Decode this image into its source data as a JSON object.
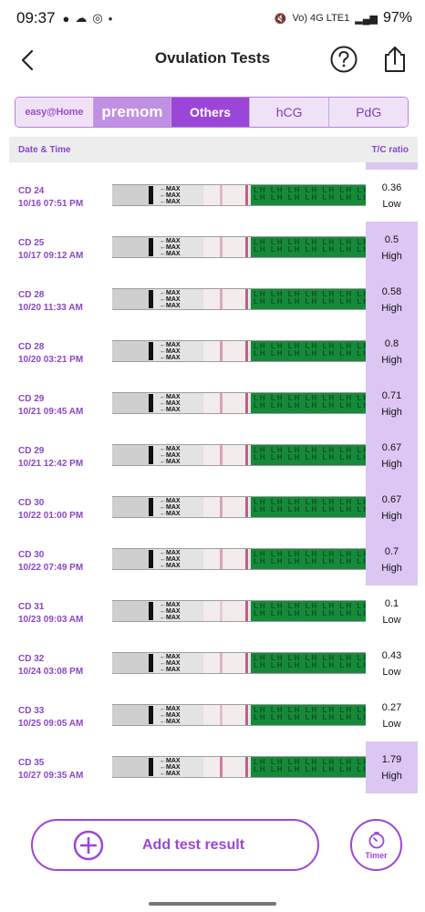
{
  "status_bar": {
    "time": "09:37",
    "network": "Vo) 4G LTE1",
    "battery": "97%"
  },
  "header": {
    "title": "Ovulation Tests"
  },
  "tabs": [
    {
      "label": "easy@Home"
    },
    {
      "label": "premom"
    },
    {
      "label": "Others"
    },
    {
      "label": "hCG"
    },
    {
      "label": "PdG"
    }
  ],
  "table": {
    "col_date": "Date & Time",
    "col_ratio": "T/C ratio"
  },
  "strip": {
    "max_label": "MAX",
    "lh_text": "LH LH LH LH LH LH LH LH LH LH LH LH LH LH LH LH"
  },
  "rows": [
    {
      "cd": "CD 24",
      "datetime": "10/16   07:51 PM",
      "ratio": "0.36",
      "level": "Low"
    },
    {
      "cd": "CD 25",
      "datetime": "10/17   09:12 AM",
      "ratio": "0.5",
      "level": "High"
    },
    {
      "cd": "CD 28",
      "datetime": "10/20   11:33 AM",
      "ratio": "0.58",
      "level": "High"
    },
    {
      "cd": "CD 28",
      "datetime": "10/20   03:21 PM",
      "ratio": "0.8",
      "level": "High"
    },
    {
      "cd": "CD 29",
      "datetime": "10/21   09:45 AM",
      "ratio": "0.71",
      "level": "High"
    },
    {
      "cd": "CD 29",
      "datetime": "10/21   12:42 PM",
      "ratio": "0.67",
      "level": "High"
    },
    {
      "cd": "CD 30",
      "datetime": "10/22   01:00 PM",
      "ratio": "0.67",
      "level": "High"
    },
    {
      "cd": "CD 30",
      "datetime": "10/22   07:49 PM",
      "ratio": "0.7",
      "level": "High"
    },
    {
      "cd": "CD 31",
      "datetime": "10/23   09:03 AM",
      "ratio": "0.1",
      "level": "Low"
    },
    {
      "cd": "CD 32",
      "datetime": "10/24   03:08 PM",
      "ratio": "0.43",
      "level": "Low"
    },
    {
      "cd": "CD 33",
      "datetime": "10/25   09:05 AM",
      "ratio": "0.27",
      "level": "Low"
    },
    {
      "cd": "CD 35",
      "datetime": "10/27   09:35 AM",
      "ratio": "1.79",
      "level": "High"
    }
  ],
  "bottom": {
    "add_label": "Add test result",
    "timer_label": "Timer"
  },
  "colors": {
    "accent": "#9c46d9",
    "high_bg": "#dcc6f3",
    "strip_green": "#168a3a",
    "test_line": "#c95a86"
  }
}
